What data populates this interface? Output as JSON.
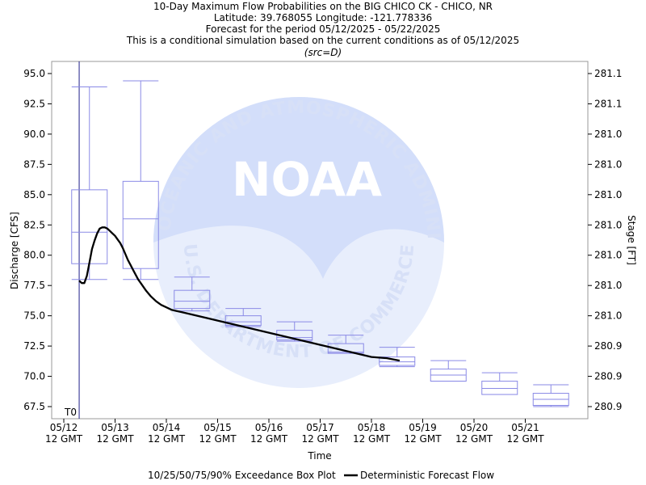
{
  "chart_data": {
    "type": "box",
    "title_lines": [
      "10-Day Maximum Flow Probabilities on the BIG CHICO CK - CHICO, NR",
      "Latitude: 39.768055 Longitude: -121.778336",
      "Forecast for the period 05/12/2025 - 05/22/2025",
      "This is a conditional simulation based on the current conditions as of 05/12/2025"
    ],
    "source_note": "(src=D)",
    "xlabel": "Time",
    "ylabel": "Discharge [CFS]",
    "y2label": "Stage [FT]",
    "ylim": [
      66.5,
      96.0
    ],
    "yticks": [
      67.5,
      70.0,
      72.5,
      75.0,
      77.5,
      80.0,
      82.5,
      85.0,
      87.5,
      90.0,
      92.5,
      95.0
    ],
    "ytick_labels": [
      "67.5",
      "70.0",
      "72.5",
      "75.0",
      "77.5",
      "80.0",
      "82.5",
      "85.0",
      "87.5",
      "90.0",
      "92.5",
      "95.0"
    ],
    "y2tick_labels": [
      "280.9",
      "280.9",
      "280.9",
      "281.0",
      "281.0",
      "281.0",
      "281.0",
      "281.0",
      "281.0",
      "281.0",
      "281.1",
      "281.1"
    ],
    "xlim": [
      0,
      10.5
    ],
    "xticks": [
      {
        "x": 0,
        "line1": "05/12",
        "line2": "12 GMT"
      },
      {
        "x": 1,
        "line1": "05/13",
        "line2": "12 GMT"
      },
      {
        "x": 2,
        "line1": "05/14",
        "line2": "12 GMT"
      },
      {
        "x": 3,
        "line1": "05/15",
        "line2": "12 GMT"
      },
      {
        "x": 4,
        "line1": "05/16",
        "line2": "12 GMT"
      },
      {
        "x": 5,
        "line1": "05/17",
        "line2": "12 GMT"
      },
      {
        "x": 6,
        "line1": "05/18",
        "line2": "12 GMT"
      },
      {
        "x": 7,
        "line1": "05/19",
        "line2": "12 GMT"
      },
      {
        "x": 8,
        "line1": "05/20",
        "line2": "12 GMT"
      },
      {
        "x": 9,
        "line1": "05/21",
        "line2": "12 GMT"
      }
    ],
    "t0_label": "T0",
    "t0_x": 0.3,
    "boxes": [
      {
        "x": 0.5,
        "p10": 78.0,
        "p25": 79.3,
        "p50": 81.9,
        "p75": 85.4,
        "p90": 93.9
      },
      {
        "x": 1.5,
        "p10": 78.0,
        "p25": 78.9,
        "p50": 83.0,
        "p75": 86.1,
        "p90": 94.4
      },
      {
        "x": 2.5,
        "p10": 75.4,
        "p25": 75.6,
        "p50": 76.2,
        "p75": 77.1,
        "p90": 78.2
      },
      {
        "x": 3.5,
        "p10": 74.1,
        "p25": 74.2,
        "p50": 74.5,
        "p75": 75.0,
        "p90": 75.6
      },
      {
        "x": 4.5,
        "p10": 72.9,
        "p25": 73.0,
        "p50": 73.2,
        "p75": 73.8,
        "p90": 74.5
      },
      {
        "x": 5.5,
        "p10": 71.9,
        "p25": 71.9,
        "p50": 72.0,
        "p75": 72.7,
        "p90": 73.4
      },
      {
        "x": 6.5,
        "p10": 70.8,
        "p25": 70.9,
        "p50": 71.2,
        "p75": 71.6,
        "p90": 72.4
      },
      {
        "x": 7.5,
        "p10": 69.6,
        "p25": 69.6,
        "p50": 70.1,
        "p75": 70.6,
        "p90": 71.3
      },
      {
        "x": 8.5,
        "p10": 68.5,
        "p25": 68.5,
        "p50": 69.0,
        "p75": 69.6,
        "p90": 70.3
      },
      {
        "x": 9.5,
        "p10": 67.5,
        "p25": 67.6,
        "p50": 68.1,
        "p75": 68.6,
        "p90": 69.3
      }
    ],
    "forecast": {
      "name": "Deterministic Forecast Flow",
      "x": [
        0.3,
        0.35,
        0.4,
        0.45,
        0.5,
        0.55,
        0.6,
        0.65,
        0.7,
        0.75,
        0.8,
        0.85,
        0.9,
        0.95,
        1.0,
        1.05,
        1.1,
        1.15,
        1.2,
        1.25,
        1.3,
        1.35,
        1.4,
        1.45,
        1.5,
        1.6,
        1.7,
        1.8,
        1.9,
        2.0,
        2.1,
        2.2,
        2.3,
        2.4,
        2.5,
        2.7,
        3.0,
        3.3,
        3.6,
        4.0,
        4.3,
        4.6,
        5.0,
        5.3,
        5.6,
        6.0,
        6.3,
        6.55
      ],
      "y": [
        77.9,
        77.7,
        77.7,
        78.3,
        79.4,
        80.5,
        81.2,
        81.8,
        82.2,
        82.3,
        82.3,
        82.2,
        82.0,
        81.8,
        81.6,
        81.3,
        81.0,
        80.6,
        80.1,
        79.6,
        79.2,
        78.8,
        78.4,
        78.0,
        77.7,
        77.1,
        76.6,
        76.2,
        75.9,
        75.7,
        75.5,
        75.4,
        75.3,
        75.2,
        75.1,
        74.9,
        74.6,
        74.3,
        74.0,
        73.6,
        73.3,
        73.0,
        72.6,
        72.3,
        72.0,
        71.6,
        71.5,
        71.3
      ]
    },
    "legend": {
      "box_label": "10/25/50/75/90% Exceedance Box Plot",
      "line_label": "Deterministic Forecast Flow"
    },
    "watermark": {
      "arc_top": "NATIONAL OCEANIC AND ATMOSPHERIC ADMINISTRATION",
      "arc_bottom": "U.S. DEPARTMENT OF COMMERCE",
      "center": "NOAA"
    },
    "grid": false,
    "colors": {
      "box": "#8a8ae6",
      "line": "#000000",
      "t0_line": "#1f1f8a",
      "watermark": "#dde6fb"
    }
  }
}
